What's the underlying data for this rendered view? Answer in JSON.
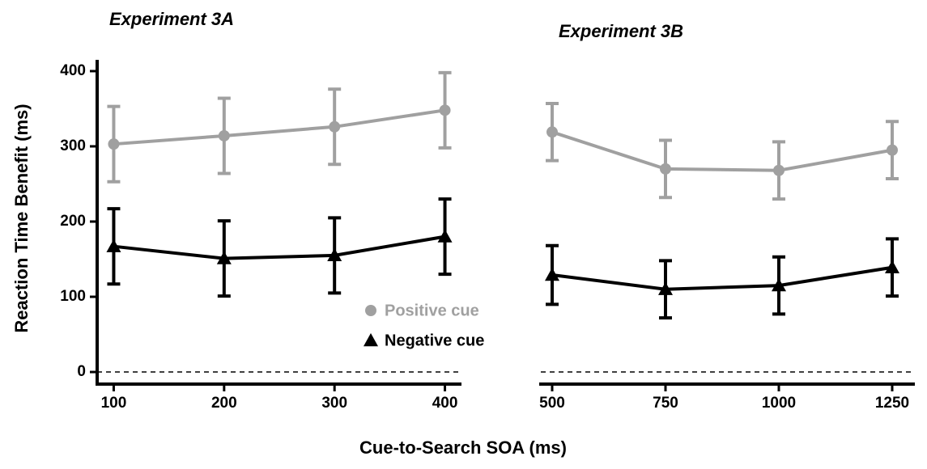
{
  "ylabel": "Reaction Time Benefit (ms)",
  "xlabel": "Cue-to-Search SOA (ms)",
  "chart_data": [
    {
      "type": "line",
      "title": "Experiment 3A",
      "x": [
        100,
        200,
        300,
        400
      ],
      "xlim": [
        85,
        415
      ],
      "xticks": [
        100,
        200,
        300,
        400
      ],
      "ylim": [
        -15,
        415
      ],
      "yticks": [
        0,
        100,
        200,
        300,
        400
      ],
      "hline": 0,
      "legend": "lower right",
      "series": [
        {
          "name": "Positive cue",
          "color": "#a0a0a0",
          "marker": "circle",
          "values": [
            303,
            314,
            326,
            348
          ],
          "errors": [
            50,
            50,
            50,
            50
          ]
        },
        {
          "name": "Negative cue",
          "color": "#000000",
          "marker": "triangle",
          "values": [
            167,
            151,
            155,
            180
          ],
          "errors": [
            50,
            50,
            50,
            50
          ]
        }
      ]
    },
    {
      "type": "line",
      "title": "Experiment 3B",
      "x": [
        500,
        750,
        1000,
        1250
      ],
      "xlim": [
        475,
        1300
      ],
      "xticks": [
        500,
        750,
        1000,
        1250
      ],
      "ylim": [
        -15,
        415
      ],
      "hline": 0,
      "series": [
        {
          "name": "Positive cue",
          "color": "#a0a0a0",
          "marker": "circle",
          "values": [
            319,
            270,
            268,
            295
          ],
          "errors": [
            38,
            38,
            38,
            38
          ]
        },
        {
          "name": "Negative cue",
          "color": "#000000",
          "marker": "triangle",
          "values": [
            129,
            110,
            115,
            139
          ],
          "errors": [
            39,
            38,
            38,
            38
          ]
        }
      ]
    }
  ]
}
